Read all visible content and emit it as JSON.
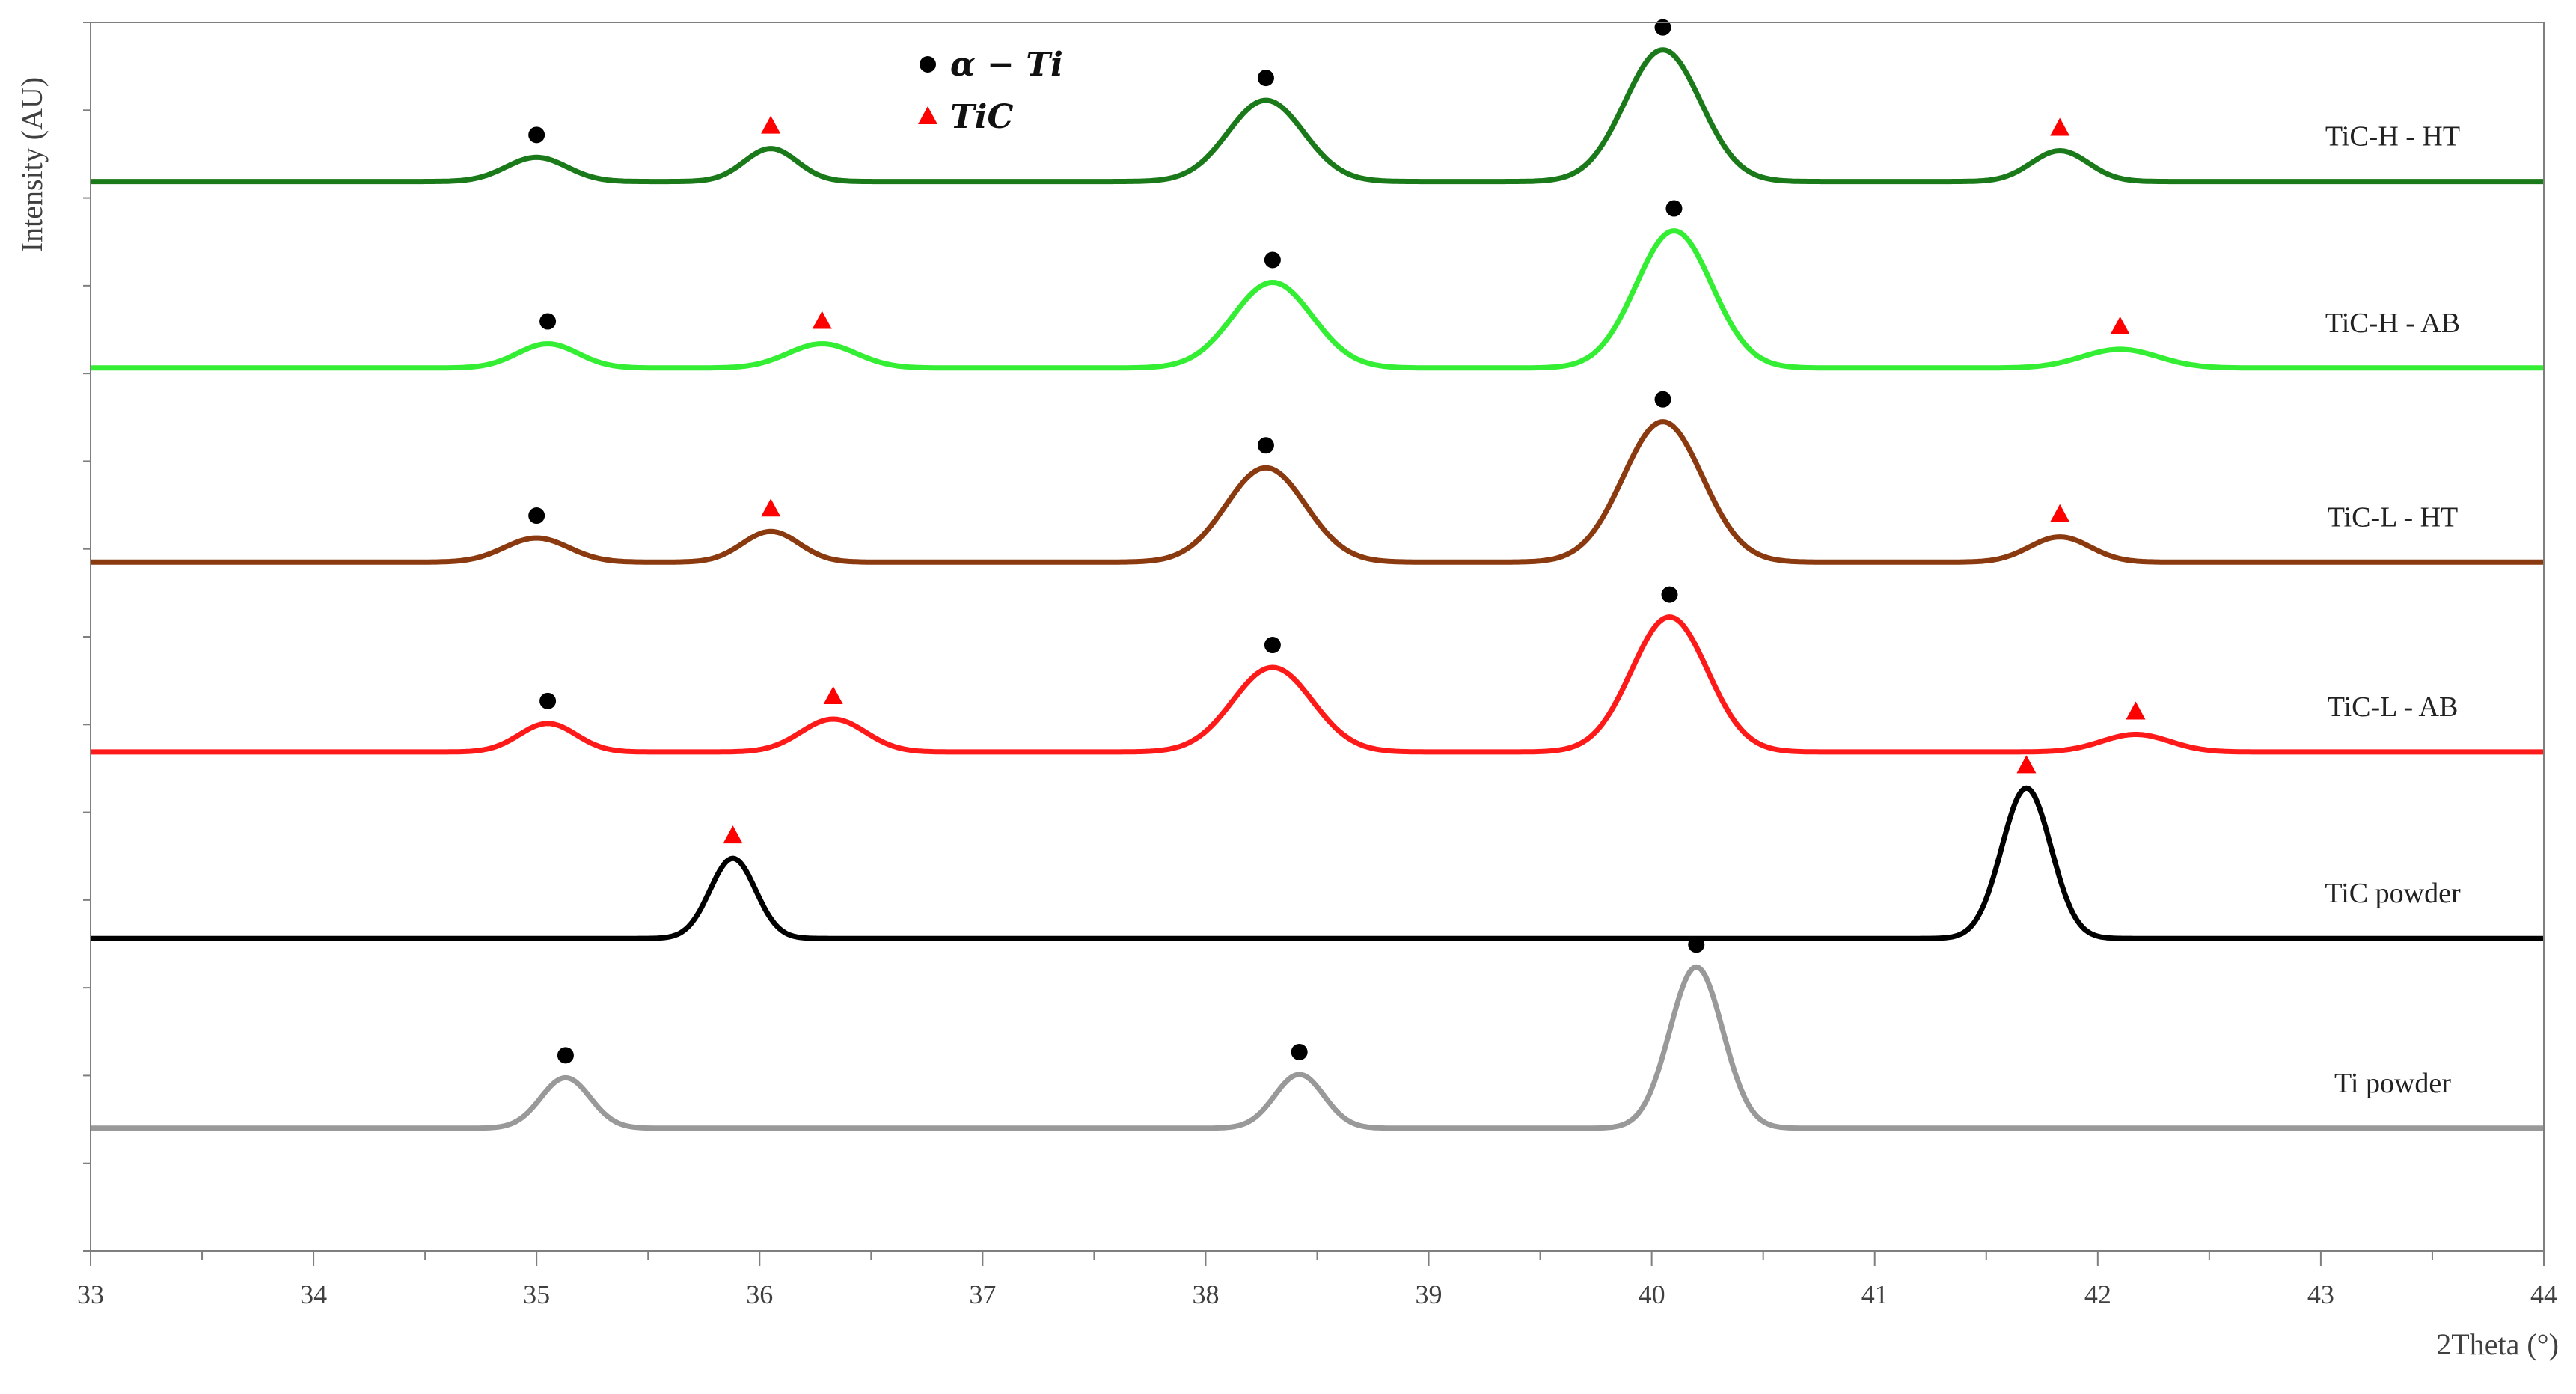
{
  "chart_data": {
    "type": "line",
    "title": "",
    "xlabel": "2Theta (°)",
    "ylabel": "Intensity (AU)",
    "xlim": [
      33,
      44
    ],
    "ylim": [
      0,
      11.2
    ],
    "x_ticks": [
      33,
      34,
      35,
      36,
      37,
      38,
      39,
      40,
      41,
      42,
      43,
      44
    ],
    "grid": false,
    "legend": {
      "placement": "top-center",
      "entries": [
        {
          "label": "α − Ti",
          "marker": "circle",
          "color": "#000000"
        },
        {
          "label": "TiC",
          "marker": "triangle",
          "color": "#ff0000"
        }
      ]
    },
    "series": [
      {
        "name": "TiC-H - HT",
        "color": "#1a7a1a",
        "baseline": 9.75,
        "peaks": [
          {
            "x": 35.0,
            "h": 0.22,
            "w": 0.32,
            "phase": "alpha-Ti"
          },
          {
            "x": 36.05,
            "h": 0.3,
            "w": 0.28,
            "phase": "TiC"
          },
          {
            "x": 38.27,
            "h": 0.74,
            "w": 0.4,
            "phase": "alpha-Ti"
          },
          {
            "x": 40.05,
            "h": 1.2,
            "w": 0.4,
            "phase": "alpha-Ti"
          },
          {
            "x": 41.83,
            "h": 0.28,
            "w": 0.3,
            "phase": "TiC"
          }
        ]
      },
      {
        "name": "TiC-H - AB",
        "color": "#33ee33",
        "baseline": 8.05,
        "peaks": [
          {
            "x": 35.05,
            "h": 0.22,
            "w": 0.32,
            "phase": "alpha-Ti"
          },
          {
            "x": 36.28,
            "h": 0.22,
            "w": 0.36,
            "phase": "TiC"
          },
          {
            "x": 38.3,
            "h": 0.78,
            "w": 0.42,
            "phase": "alpha-Ti"
          },
          {
            "x": 40.1,
            "h": 1.25,
            "w": 0.4,
            "phase": "alpha-Ti"
          },
          {
            "x": 42.1,
            "h": 0.17,
            "w": 0.4,
            "phase": "TiC"
          }
        ]
      },
      {
        "name": "TiC-L - HT",
        "color": "#8b3a0f",
        "baseline": 6.28,
        "peaks": [
          {
            "x": 35.0,
            "h": 0.22,
            "w": 0.34,
            "phase": "alpha-Ti"
          },
          {
            "x": 36.05,
            "h": 0.28,
            "w": 0.3,
            "phase": "TiC"
          },
          {
            "x": 38.27,
            "h": 0.86,
            "w": 0.42,
            "phase": "alpha-Ti"
          },
          {
            "x": 40.05,
            "h": 1.28,
            "w": 0.42,
            "phase": "alpha-Ti"
          },
          {
            "x": 41.83,
            "h": 0.23,
            "w": 0.32,
            "phase": "TiC"
          }
        ]
      },
      {
        "name": "TiC-L - AB",
        "color": "#ff1a1a",
        "baseline": 4.55,
        "peaks": [
          {
            "x": 35.05,
            "h": 0.26,
            "w": 0.3,
            "phase": "alpha-Ti"
          },
          {
            "x": 36.33,
            "h": 0.3,
            "w": 0.34,
            "phase": "TiC"
          },
          {
            "x": 38.3,
            "h": 0.77,
            "w": 0.42,
            "phase": "alpha-Ti"
          },
          {
            "x": 40.08,
            "h": 1.23,
            "w": 0.4,
            "phase": "alpha-Ti"
          },
          {
            "x": 42.17,
            "h": 0.16,
            "w": 0.36,
            "phase": "TiC"
          }
        ]
      },
      {
        "name": "TiC powder",
        "color": "#000000",
        "baseline": 2.85,
        "peaks": [
          {
            "x": 35.88,
            "h": 0.73,
            "w": 0.24,
            "phase": "TiC"
          },
          {
            "x": 41.68,
            "h": 1.37,
            "w": 0.26,
            "phase": "TiC"
          }
        ]
      },
      {
        "name": "Ti powder",
        "color": "#999999",
        "baseline": 1.12,
        "peaks": [
          {
            "x": 35.13,
            "h": 0.46,
            "w": 0.26,
            "phase": "alpha-Ti"
          },
          {
            "x": 38.42,
            "h": 0.49,
            "w": 0.26,
            "phase": "alpha-Ti"
          },
          {
            "x": 40.2,
            "h": 1.47,
            "w": 0.28,
            "phase": "alpha-Ti"
          }
        ]
      }
    ]
  }
}
